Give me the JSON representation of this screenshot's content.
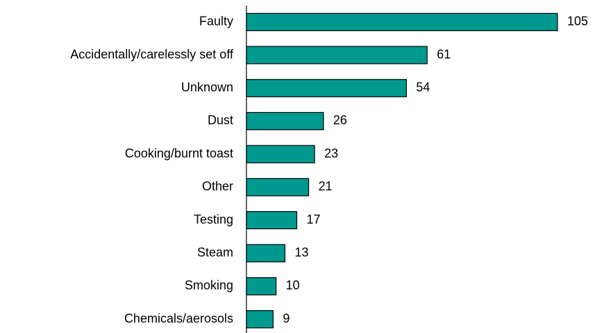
{
  "chart_data": {
    "type": "bar",
    "orientation": "horizontal",
    "categories": [
      "Faulty",
      "Accidentally/carelessly set off",
      "Unknown",
      "Dust",
      "Cooking/burnt toast",
      "Other",
      "Testing",
      "Steam",
      "Smoking",
      "Chemicals/aerosols"
    ],
    "values": [
      105,
      61,
      54,
      26,
      23,
      21,
      17,
      13,
      10,
      9
    ],
    "color": "#009990"
  }
}
